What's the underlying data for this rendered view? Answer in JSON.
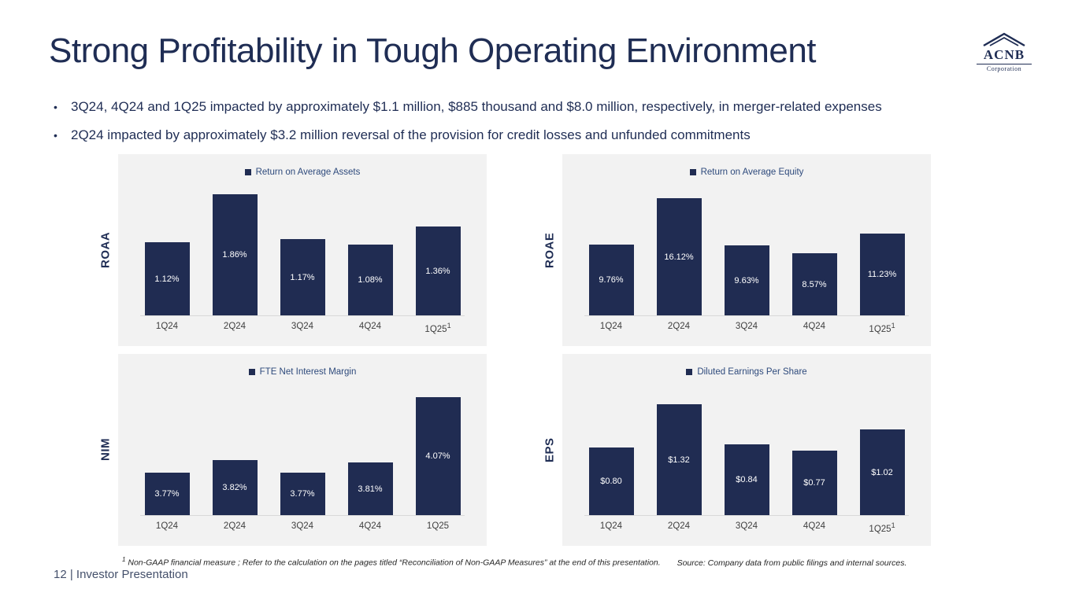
{
  "slide": {
    "title": "Strong Profitability in Tough Operating Environment",
    "bullets": [
      "3Q24, 4Q24 and 1Q25  impacted by approximately $1.1 million, $885 thousand and $8.0 million, respectively, in merger-related expenses",
      "2Q24 impacted by approximately $3.2 million reversal of the provision for credit losses and unfunded commitments"
    ],
    "footnote": {
      "sup": "1",
      "text": "Non-GAAP financial measure ; Refer to the calculation on the pages titled “Reconciliation of Non-GAAP Measures” at the end of this presentation.",
      "source": "Source: Company data from public filings and internal sources."
    },
    "page_footer": "12  | Investor Presentation",
    "logo": {
      "text": "ACNB",
      "subtext": "Corporation"
    }
  },
  "colors": {
    "bar": "#202c52",
    "title_text": "#1f2d54",
    "legend_text": "#2e4a7c",
    "panel_bg": "#f2f2f2",
    "axis_line": "#d9d9d9"
  },
  "chart_data": [
    {
      "id": "roaa",
      "type": "bar",
      "side_label": "ROAA",
      "legend": "Return on Average Assets",
      "categories": [
        "1Q24",
        "2Q24",
        "3Q24",
        "4Q24",
        "1Q25"
      ],
      "values": [
        1.12,
        1.86,
        1.17,
        1.08,
        1.36
      ],
      "labels": [
        "1.12%",
        "1.86%",
        "1.17%",
        "1.08%",
        "1.36%"
      ],
      "ylim": [
        0,
        2.0
      ],
      "last_superscript": "1",
      "legend_position": "top",
      "grid": false
    },
    {
      "id": "roae",
      "type": "bar",
      "side_label": "ROAE",
      "legend": "Return on Average Equity",
      "categories": [
        "1Q24",
        "2Q24",
        "3Q24",
        "4Q24",
        "1Q25"
      ],
      "values": [
        9.76,
        16.12,
        9.63,
        8.57,
        11.23
      ],
      "labels": [
        "9.76%",
        "16.12%",
        "9.63%",
        "8.57%",
        "11.23%"
      ],
      "ylim": [
        0,
        18
      ],
      "last_superscript": "1",
      "legend_position": "top",
      "grid": false
    },
    {
      "id": "nim",
      "type": "bar",
      "side_label": "NIM",
      "legend": "FTE Net Interest Margin",
      "categories": [
        "1Q24",
        "2Q24",
        "3Q24",
        "4Q24",
        "1Q25"
      ],
      "values": [
        3.77,
        3.82,
        3.77,
        3.81,
        4.07
      ],
      "labels": [
        "3.77%",
        "3.82%",
        "3.77%",
        "3.81%",
        "4.07%"
      ],
      "ylim": [
        3.6,
        4.12
      ],
      "last_superscript": null,
      "legend_position": "top",
      "grid": false
    },
    {
      "id": "eps",
      "type": "bar",
      "side_label": "EPS",
      "legend": "Diluted Earnings Per Share",
      "categories": [
        "1Q24",
        "2Q24",
        "3Q24",
        "4Q24",
        "1Q25"
      ],
      "values": [
        0.8,
        1.32,
        0.84,
        0.77,
        1.02
      ],
      "labels": [
        "$0.80",
        "$1.32",
        "$0.84",
        "$0.77",
        "$1.02"
      ],
      "ylim": [
        0,
        1.55
      ],
      "last_superscript": "1",
      "legend_position": "top",
      "grid": false
    }
  ]
}
